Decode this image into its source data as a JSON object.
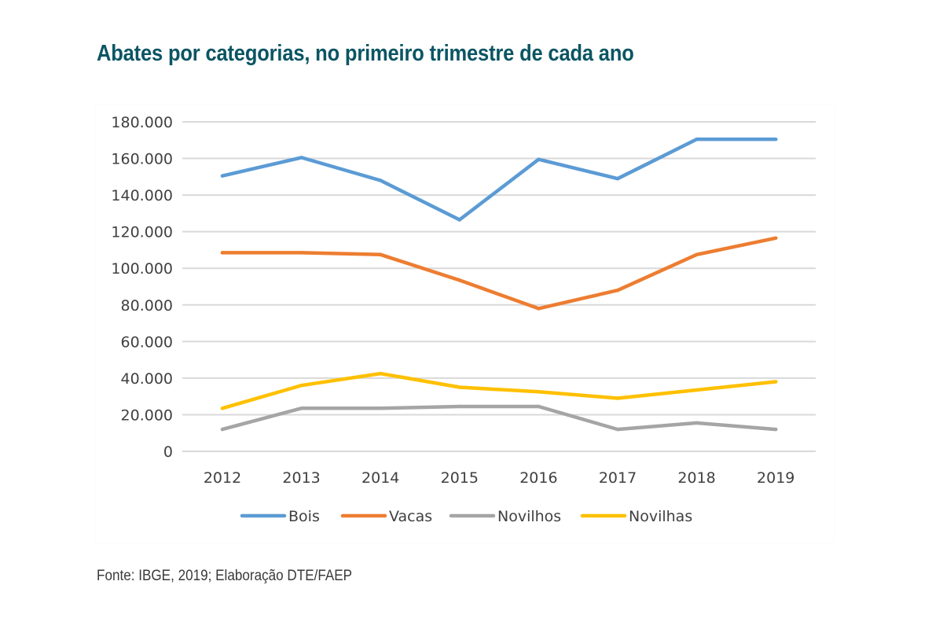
{
  "title": "Abates por categorias, no primeiro trimestre de cada ano",
  "source": "Fonte: IBGE, 2019; Elaboração DTE/FAEP",
  "colors": {
    "title": "#0b5563",
    "grid": "#d9d9d9",
    "text": "#404040"
  },
  "chart_data": {
    "type": "line",
    "title": "",
    "xlabel": "",
    "ylabel": "",
    "categories": [
      "2012",
      "2013",
      "2014",
      "2015",
      "2016",
      "2017",
      "2018",
      "2019"
    ],
    "ylim": [
      0,
      180000
    ],
    "yticks": [
      0,
      20000,
      40000,
      60000,
      80000,
      100000,
      120000,
      140000,
      160000,
      180000
    ],
    "ytick_labels": [
      "0",
      "20.000",
      "40.000",
      "60.000",
      "80.000",
      "100.000",
      "120.000",
      "140.000",
      "160.000",
      "180.000"
    ],
    "grid": true,
    "legend_position": "bottom",
    "series": [
      {
        "name": "Bois",
        "color": "#5b9bd5",
        "values": [
          150500,
          160500,
          148000,
          126500,
          159500,
          149000,
          170500,
          170500
        ]
      },
      {
        "name": "Vacas",
        "color": "#ed7d31",
        "values": [
          108500,
          108500,
          107500,
          93500,
          78000,
          88000,
          107500,
          116500
        ]
      },
      {
        "name": "Novilhos",
        "color": "#a5a5a5",
        "values": [
          12000,
          23500,
          23500,
          24500,
          24500,
          12000,
          15500,
          12000
        ]
      },
      {
        "name": "Novilhas",
        "color": "#ffc000",
        "values": [
          23500,
          36000,
          42500,
          35000,
          32500,
          29000,
          33500,
          38000
        ]
      }
    ]
  }
}
